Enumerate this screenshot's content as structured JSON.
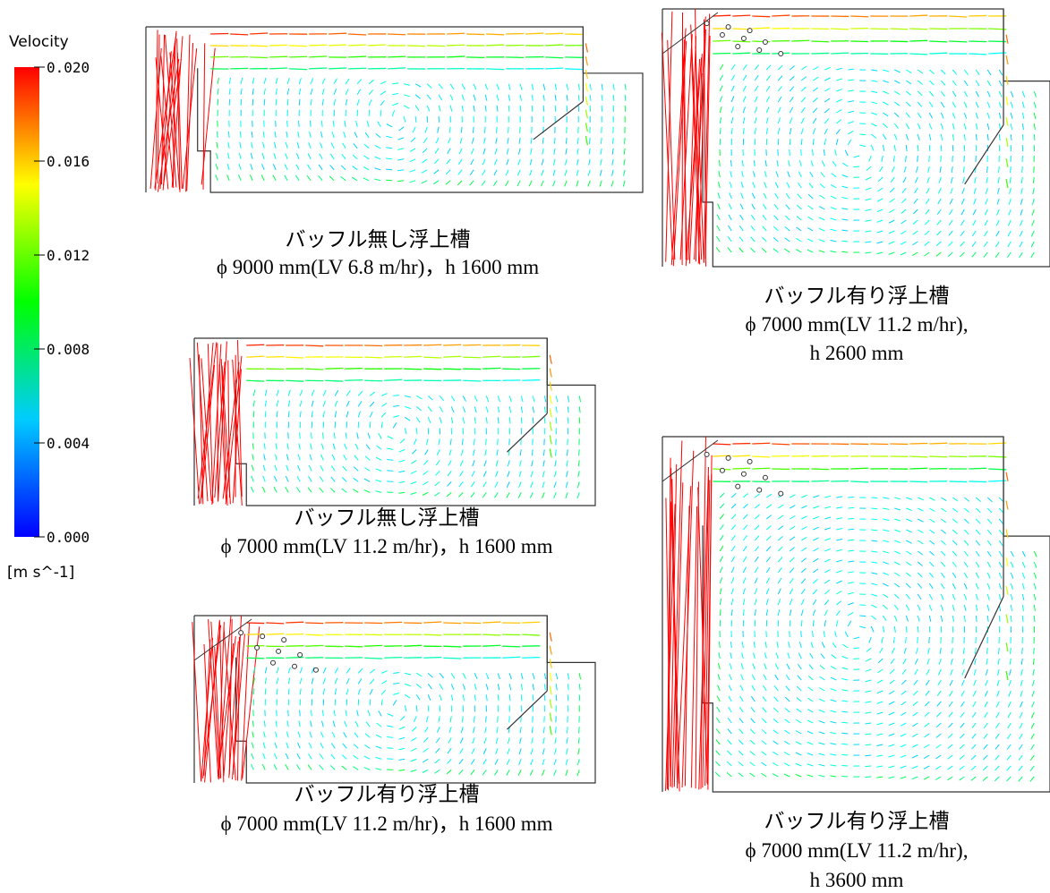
{
  "legend": {
    "title": "Velocity",
    "ticks": [
      {
        "value": 0.02,
        "label": "0.020"
      },
      {
        "value": 0.016,
        "label": "0.016"
      },
      {
        "value": 0.012,
        "label": "0.012"
      },
      {
        "value": 0.008,
        "label": "0.008"
      },
      {
        "value": 0.004,
        "label": "0.004"
      },
      {
        "value": 0,
        "label": "0.000"
      }
    ],
    "unit": "[m  s^-1]"
  },
  "panels": [
    {
      "caption": [
        "バッフル無し浮上槽",
        "ϕ 9000 mm(LV 6.8 m/hr)，h 1600 mm"
      ]
    },
    {
      "caption": [
        "バッフル無し浮上槽",
        "ϕ 7000 mm(LV 11.2 m/hr)，h 1600 mm"
      ]
    },
    {
      "caption": [
        "バッフル有り浮上槽",
        "ϕ 7000 mm(LV 11.2 m/hr)，h 1600 mm"
      ]
    },
    {
      "caption": [
        "バッフル有り浮上槽",
        "ϕ 7000 mm(LV 11.2 m/hr),",
        "h 2600 mm"
      ]
    },
    {
      "caption": [
        "バッフル有り浮上槽",
        "ϕ 7000 mm(LV 11.2 m/hr),",
        "h 3600 mm"
      ]
    }
  ]
}
